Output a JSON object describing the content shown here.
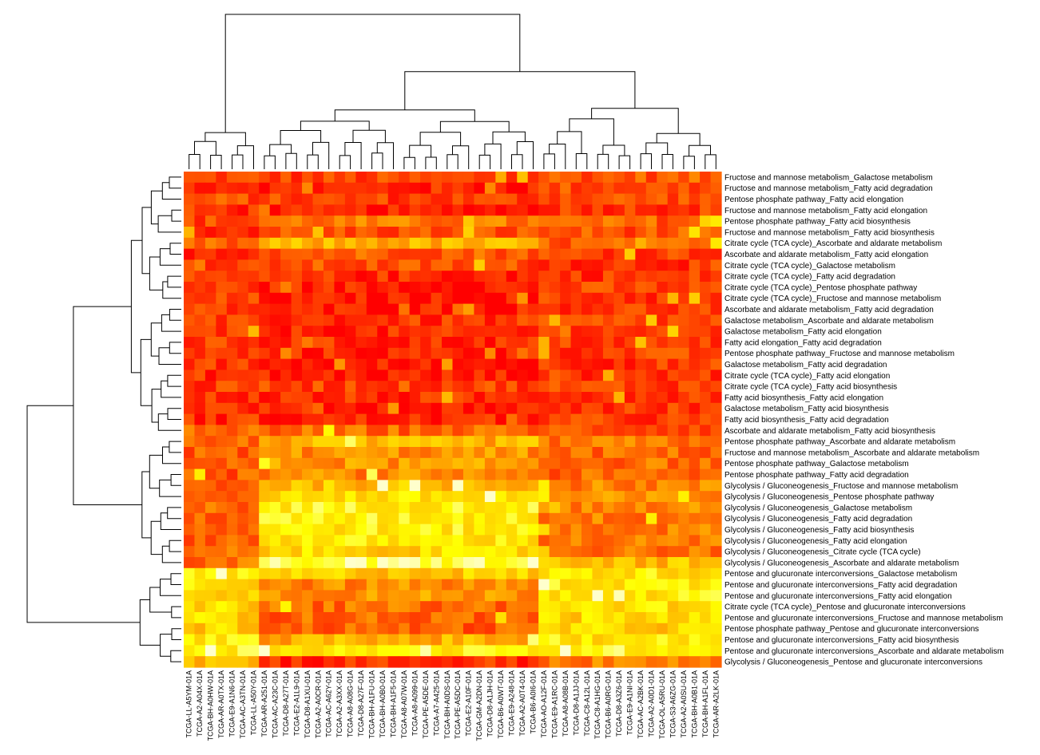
{
  "chart_data": {
    "type": "heatmap",
    "title": "",
    "xlabel": "",
    "ylabel": "",
    "legend": "none",
    "colormap": [
      "#ff0000",
      "#ff4400",
      "#ff8800",
      "#ffc800",
      "#ffff00",
      "#ffffcc"
    ],
    "value_range": [
      0,
      1
    ],
    "row_labels": [
      "Fructose and mannose metabolism_Galactose metabolism",
      "Fructose and mannose metabolism_Fatty acid degradation",
      "Pentose phosphate pathway_Fatty acid elongation",
      "Fructose and mannose metabolism_Fatty acid elongation",
      "Pentose phosphate pathway_Fatty acid biosynthesis",
      "Fructose and mannose metabolism_Fatty acid biosynthesis",
      "Citrate cycle (TCA cycle)_Ascorbate and aldarate metabolism",
      "Ascorbate and aldarate metabolism_Fatty acid elongation",
      "Citrate cycle (TCA cycle)_Galactose metabolism",
      "Citrate cycle (TCA cycle)_Fatty acid degradation",
      "Citrate cycle (TCA cycle)_Pentose phosphate pathway",
      "Citrate cycle (TCA cycle)_Fructose and mannose metabolism",
      "Ascorbate and aldarate metabolism_Fatty acid degradation",
      "Galactose metabolism_Ascorbate and aldarate metabolism",
      "Galactose metabolism_Fatty acid elongation",
      "Fatty acid elongation_Fatty acid degradation",
      "Pentose phosphate pathway_Fructose and mannose metabolism",
      "Galactose metabolism_Fatty acid degradation",
      "Citrate cycle (TCA cycle)_Fatty acid elongation",
      "Citrate cycle (TCA cycle)_Fatty acid biosynthesis",
      "Fatty acid biosynthesis_Fatty acid elongation",
      "Galactose metabolism_Fatty acid biosynthesis",
      "Fatty acid biosynthesis_Fatty acid degradation",
      "Ascorbate and aldarate metabolism_Fatty acid biosynthesis",
      "Pentose phosphate pathway_Ascorbate and aldarate metabolism",
      "Fructose and mannose metabolism_Ascorbate and aldarate metabolism",
      "Pentose phosphate pathway_Galactose metabolism",
      "Pentose phosphate pathway_Fatty acid degradation",
      "Glycolysis / Gluconeogenesis_Fructose and mannose metabolism",
      "Glycolysis / Gluconeogenesis_Pentose phosphate pathway",
      "Glycolysis / Gluconeogenesis_Galactose metabolism",
      "Glycolysis / Gluconeogenesis_Fatty acid degradation",
      "Glycolysis / Gluconeogenesis_Fatty acid biosynthesis",
      "Glycolysis / Gluconeogenesis_Fatty acid elongation",
      "Glycolysis / Gluconeogenesis_Citrate cycle (TCA cycle)",
      "Glycolysis / Gluconeogenesis_Ascorbate and aldarate metabolism",
      "Pentose and glucuronate interconversions_Galactose metabolism",
      "Pentose and glucuronate interconversions_Fatty acid degradation",
      "Pentose and glucuronate interconversions_Fatty acid elongation",
      "Citrate cycle (TCA cycle)_Pentose and glucuronate interconversions",
      "Pentose and glucuronate interconversions_Fructose and mannose metabolism",
      "Pentose phosphate pathway_Pentose and glucuronate interconversions",
      "Pentose and glucuronate interconversions_Fatty acid biosynthesis",
      "Pentose and glucuronate interconversions_Ascorbate and aldarate metabolism",
      "Glycolysis / Gluconeogenesis_Pentose and glucuronate interconversions"
    ],
    "col_labels": [
      "TCGA-LL-A5YM-01A",
      "TCGA-A2-A04X-01A",
      "TCGA-BH-A0HW-01A",
      "TCGA-AR-A0TX-01A",
      "TCGA-E9-A1N6-01A",
      "TCGA-AC-A3TN-01A",
      "TCGA-LL-A50Y-01A",
      "TCGA-AR-A251-01A",
      "TCGA-AC-A23C-01A",
      "TCGA-D8-A27T-01A",
      "TCGA-E2-A1L9-01A",
      "TCGA-D8-A1XU-01A",
      "TCGA-A2-A0CR-01A",
      "TCGA-AC-A62Y-01A",
      "TCGA-A2-A3XX-01A",
      "TCGA-A8-A08G-01A",
      "TCGA-D8-A27F-01A",
      "TCGA-BH-A1FU-01A",
      "TCGA-BH-A0B0-01A",
      "TCGA-BH-A1F5-01A",
      "TCGA-A8-A07W-01A",
      "TCGA-A8-A099-01A",
      "TCGA-PE-A5DE-01A",
      "TCGA-A7-A425-01A",
      "TCGA-BH-A0DS-01A",
      "TCGA-PE-A5DC-01A",
      "TCGA-E2-A10F-01A",
      "TCGA-GM-A2DN-01A",
      "TCGA-D8-A1JH-01A",
      "TCGA-B6-A0WT-01A",
      "TCGA-E9-A248-01A",
      "TCGA-A2-A0T4-01A",
      "TCGA-B6-A0I6-01A",
      "TCGA-AO-A12F-01A",
      "TCGA-E9-A1RC-01A",
      "TCGA-A8-A08B-01A",
      "TCGA-D8-A1JJ-01A",
      "TCGA-C8-A12L-01A",
      "TCGA-C8-A1HG-01A",
      "TCGA-B6-A0RG-01A",
      "TCGA-D8-A3Z6-01A",
      "TCGA-E9-A1NI-01A",
      "TCGA-AC-A2BK-01A",
      "TCGA-A2-A0D1-01A",
      "TCGA-OL-A5RU-01A",
      "TCGA-S3-A6ZG-01A",
      "TCGA-A2-A0SU-01A",
      "TCGA-BH-A0B1-01A",
      "TCGA-BH-A1FL-01A",
      "TCGA-AR-A2LK-01A"
    ],
    "row_baseline_left": [
      0.2,
      0.16,
      0.22,
      0.14,
      0.2,
      0.16,
      0.26,
      0.16,
      0.14,
      0.14,
      0.16,
      0.16,
      0.16,
      0.14,
      0.14,
      0.16,
      0.14,
      0.14,
      0.14,
      0.16,
      0.14,
      0.16,
      0.14,
      0.28,
      0.28,
      0.26,
      0.26,
      0.26,
      0.28,
      0.3,
      0.3,
      0.3,
      0.3,
      0.3,
      0.3,
      0.32,
      0.7,
      0.7,
      0.7,
      0.66,
      0.66,
      0.64,
      0.72,
      0.8,
      0.58
    ],
    "row_baseline_mid": [
      0.18,
      0.1,
      0.18,
      0.06,
      0.34,
      0.22,
      0.52,
      0.28,
      0.22,
      0.12,
      0.1,
      0.06,
      0.08,
      0.14,
      0.1,
      0.12,
      0.1,
      0.06,
      0.08,
      0.2,
      0.12,
      0.08,
      0.1,
      0.3,
      0.52,
      0.42,
      0.44,
      0.4,
      0.58,
      0.68,
      0.78,
      0.76,
      0.74,
      0.72,
      0.66,
      0.88,
      0.62,
      0.4,
      0.44,
      0.32,
      0.3,
      0.28,
      0.52,
      0.74,
      0.14
    ],
    "row_baseline_right": [
      0.26,
      0.22,
      0.24,
      0.18,
      0.28,
      0.24,
      0.26,
      0.2,
      0.16,
      0.16,
      0.18,
      0.16,
      0.18,
      0.2,
      0.16,
      0.16,
      0.18,
      0.16,
      0.16,
      0.2,
      0.18,
      0.16,
      0.16,
      0.24,
      0.34,
      0.3,
      0.32,
      0.28,
      0.38,
      0.4,
      0.38,
      0.36,
      0.36,
      0.34,
      0.34,
      0.56,
      0.72,
      0.74,
      0.74,
      0.7,
      0.66,
      0.64,
      0.72,
      0.8,
      0.36
    ],
    "column_groups": {
      "left_columns": 7,
      "middle_columns": 26,
      "right_columns": 17
    },
    "note_values": "relative color intensity (0 = red, 1 = pale yellow); no color key is printed"
  }
}
